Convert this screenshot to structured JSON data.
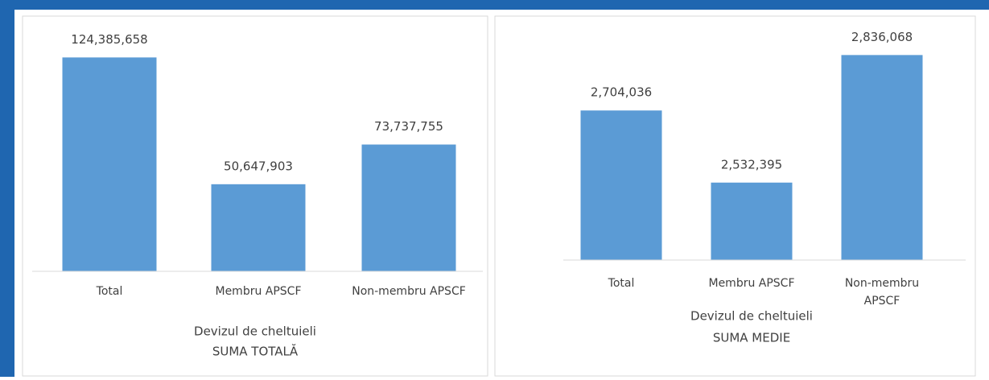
{
  "chart_data": [
    {
      "type": "bar",
      "title": "SUMA TOTALĂ",
      "x_label": "Devizul de cheltuieli",
      "categories": [
        "Total",
        "Membru APSCF",
        "Non-membru APSCF"
      ],
      "values": [
        124385658,
        50647903,
        73737755
      ],
      "value_labels": [
        "124,385,658",
        "50,647,903",
        "73,737,755"
      ],
      "color": "#5b9bd5",
      "ylim": [
        0,
        140000000
      ]
    },
    {
      "type": "bar",
      "title": "SUMA MEDIE",
      "x_label": "Devizul de cheltuieli",
      "categories": [
        "Total",
        "Membru APSCF",
        "Non-membru APSCF"
      ],
      "values": [
        2704036,
        2532395,
        2836068
      ],
      "value_labels": [
        "2,704,036",
        "2,532,395",
        "2,836,068"
      ],
      "color": "#5b9bd5",
      "ylim": [
        2348000,
        2900000
      ]
    }
  ]
}
